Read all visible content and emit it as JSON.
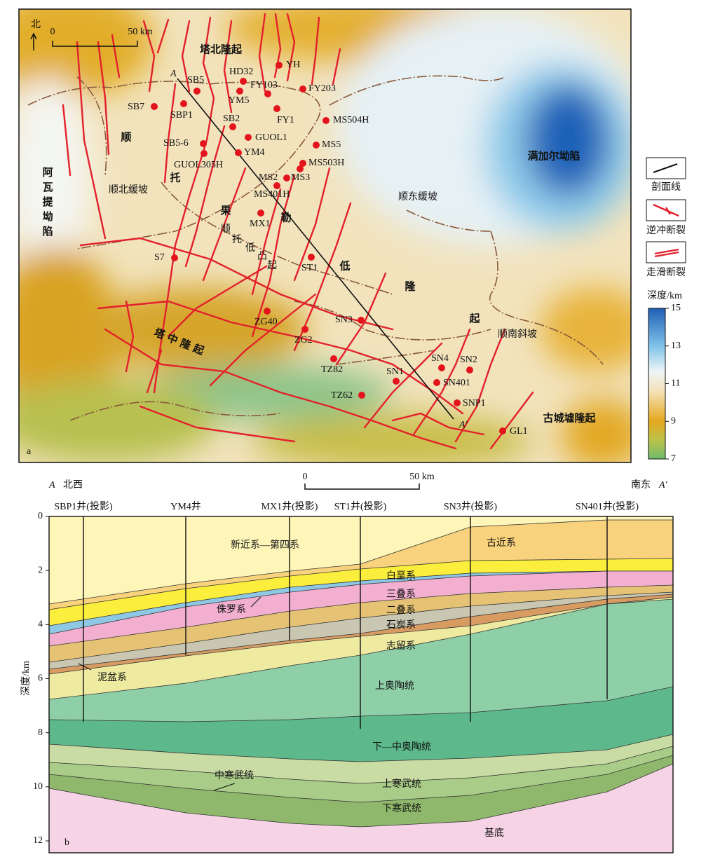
{
  "map": {
    "panel_label": "a",
    "north": "北",
    "scale": {
      "zero": 0,
      "label": "50 km"
    },
    "section_ends": {
      "start": "A",
      "end": "A′"
    },
    "wells": [
      "SB5",
      "HD32",
      "YH",
      "FY103",
      "FY203",
      "YM5",
      "SB7",
      "SBP1",
      "SB2",
      "FY1",
      "MS504H",
      "GUOL1",
      "SB5-6",
      "MS5",
      "YM4",
      "GUOL305H",
      "MS503H",
      "MS2",
      "MS3",
      "MS401H",
      "MX1",
      "S7",
      "ST1",
      "SN3",
      "ZG40",
      "ZG2",
      "TZ82",
      "SN1",
      "SN4",
      "SN2",
      "SN401",
      "TZ62",
      "SNP1",
      "GL1"
    ],
    "regions": {
      "tabei": "塔北隆起",
      "awati": "阿瓦提坳陷",
      "shunbei_slope": "顺北缓坡",
      "shundong_slope": "顺东缓坡",
      "manjiaer": "满加尔坳陷",
      "shunnan_slope": "顺南斜坡",
      "guchengxu": "古城墟隆起",
      "tazhong": "塔中隆起",
      "shuntuoguole": [
        "顺",
        "托",
        "果",
        "勒",
        "低",
        "隆",
        "起"
      ],
      "shuntuo_uplift": [
        "顺",
        "托",
        "低",
        "凸",
        "起"
      ]
    }
  },
  "legend": {
    "items": [
      "剖面线",
      "逆冲断裂",
      "走滑断裂"
    ],
    "depth_title": "深度/km",
    "depth_ticks": [
      15,
      13,
      11,
      9,
      7
    ]
  },
  "section": {
    "panel_label": "b",
    "left_end": {
      "letter": "A",
      "dir": "北西"
    },
    "right_end": {
      "dir": "南东",
      "letter": "A′"
    },
    "scale": {
      "zero": 0,
      "label": "50 km"
    },
    "wells": [
      "SBP1井(投影)",
      "YM4井",
      "MX1井(投影)",
      "ST1井(投影)",
      "SN3井(投影)",
      "SN401井(投影)"
    ],
    "depth_title": "深度/km",
    "depth_ticks": [
      0,
      2,
      4,
      6,
      8,
      10,
      12
    ],
    "layers": [
      "新近系—第四系",
      "古近系",
      "白垩系",
      "侏罗系",
      "三叠系",
      "二叠系",
      "石炭系",
      "泥盆系",
      "志留系",
      "上奥陶统",
      "下—中奥陶统",
      "中寒武统",
      "上寒武统",
      "下寒武统",
      "基底"
    ]
  }
}
